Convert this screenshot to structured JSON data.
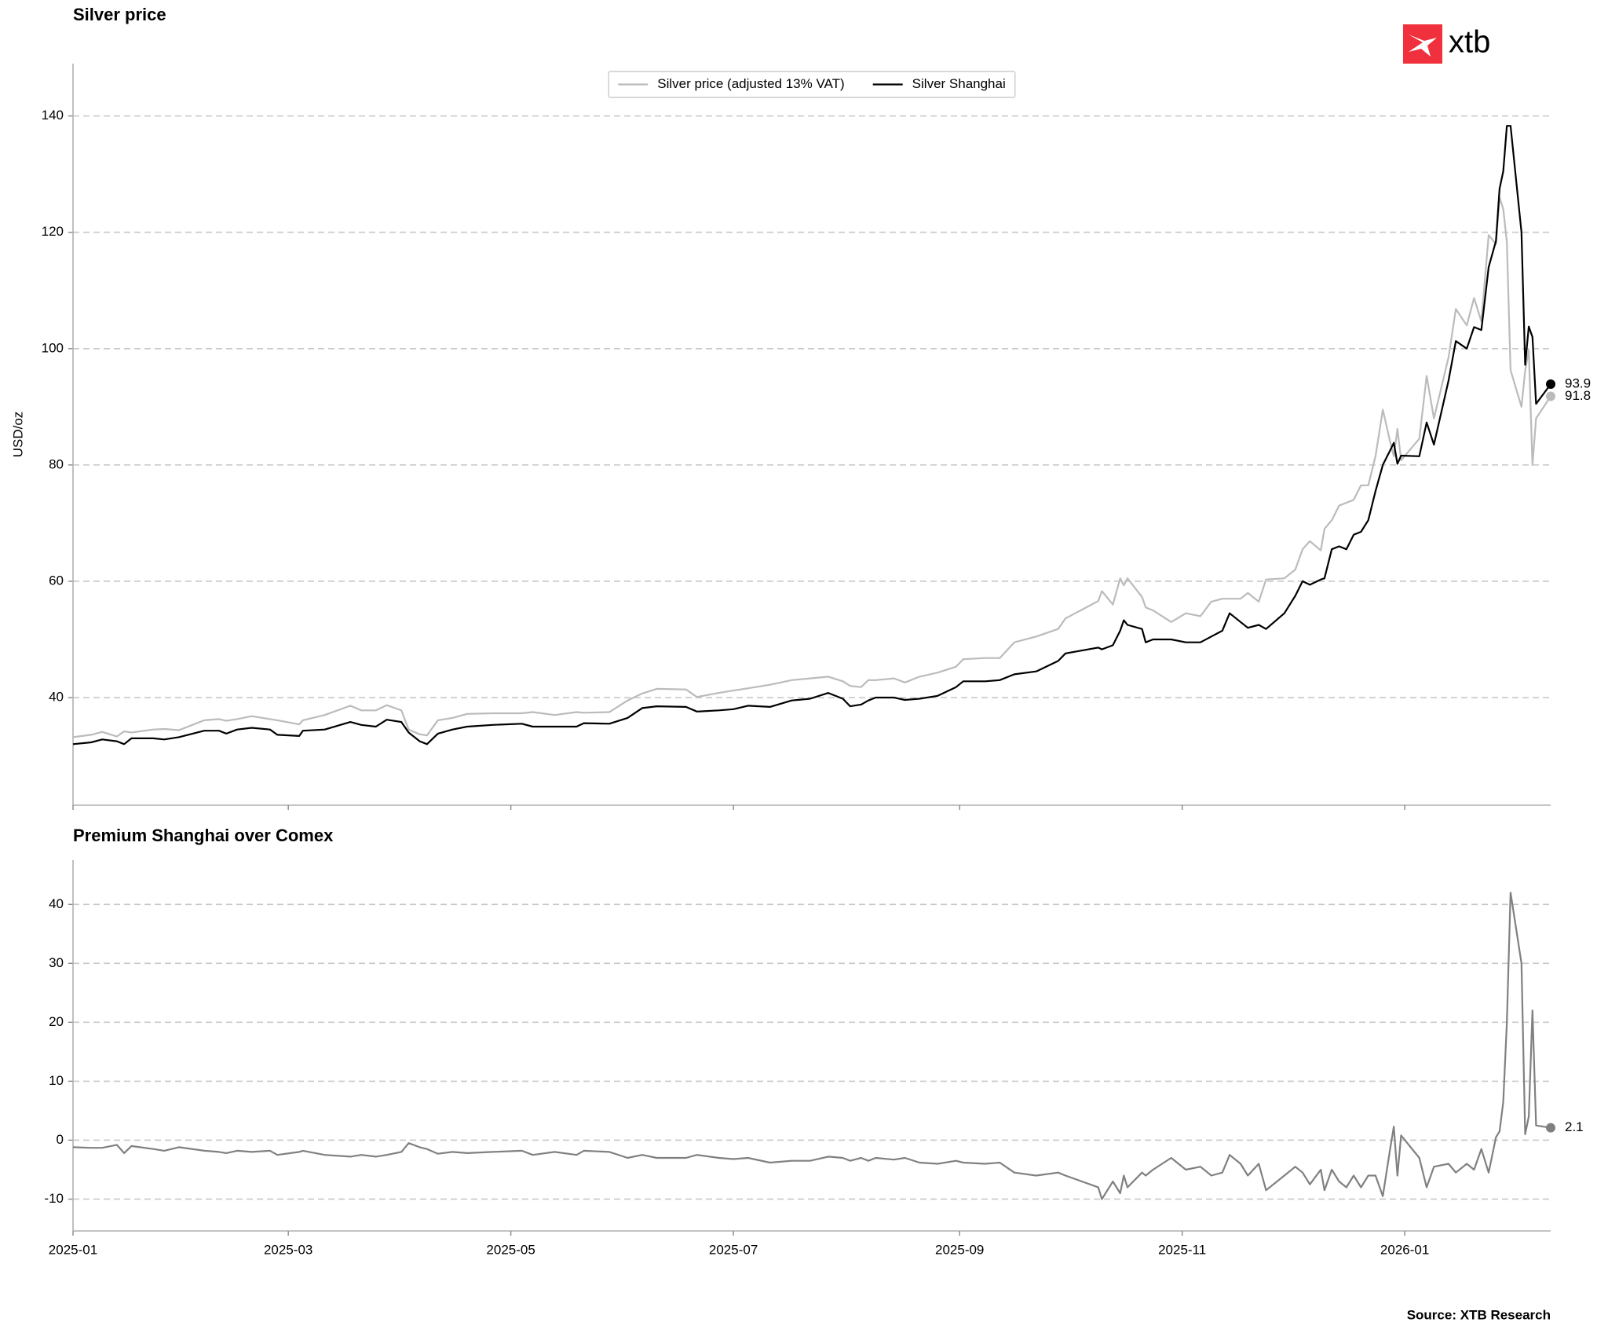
{
  "chart_data": [
    {
      "type": "line",
      "title": "Silver price",
      "ylabel": "USD/oz",
      "x": [
        0,
        5,
        8,
        12,
        14,
        16,
        22,
        25,
        29,
        36,
        40,
        42,
        45,
        49,
        54,
        56,
        62,
        63,
        69,
        76,
        79,
        83,
        86,
        90,
        92,
        95,
        97,
        100,
        104,
        108,
        115,
        123,
        126,
        132,
        138,
        140,
        147,
        152,
        156,
        160,
        168,
        171,
        177,
        181,
        185,
        191,
        197,
        202,
        207,
        211,
        213,
        216,
        218,
        220,
        225,
        228,
        232,
        237,
        242,
        244,
        250,
        254,
        258,
        264,
        270,
        272,
        281,
        282,
        285,
        287,
        288,
        289,
        293,
        294,
        296,
        301,
        305,
        309,
        312,
        315,
        317,
        320,
        322,
        325,
        327,
        332,
        335,
        337,
        339,
        342,
        343,
        345,
        347,
        349,
        351,
        353,
        355,
        357,
        359,
        361,
        362,
        363,
        364,
        369,
        371,
        373,
        377,
        379,
        382,
        384,
        386,
        388,
        390,
        391,
        392,
        393,
        394,
        397,
        398,
        399,
        400,
        401,
        405
      ],
      "series": [
        {
          "name": "Silver price (adjusted 13% VAT)",
          "color": "#bbbbbb",
          "values": [
            33.2,
            33.6,
            34.1,
            33.3,
            34.2,
            34.0,
            34.5,
            34.6,
            34.4,
            36.1,
            36.3,
            36.0,
            36.3,
            36.8,
            36.3,
            36.1,
            35.4,
            36.1,
            37.0,
            38.6,
            37.8,
            37.8,
            38.7,
            37.8,
            34.5,
            33.7,
            33.5,
            36.1,
            36.5,
            37.2,
            37.3,
            37.3,
            37.5,
            37.0,
            37.5,
            37.4,
            37.5,
            39.5,
            40.7,
            41.5,
            41.4,
            40.1,
            40.8,
            41.2,
            41.6,
            42.2,
            43.0,
            43.3,
            43.6,
            42.8,
            42.0,
            41.8,
            43.0,
            43.0,
            43.3,
            42.6,
            43.6,
            44.3,
            45.3,
            46.6,
            46.8,
            46.8,
            49.5,
            50.5,
            51.8,
            53.6,
            56.6,
            58.3,
            56.0,
            60.5,
            59.3,
            60.5,
            57.3,
            55.5,
            55.0,
            53.0,
            54.5,
            54.0,
            56.5,
            57.0,
            57.0,
            57.0,
            58.0,
            56.5,
            60.3,
            60.5,
            62.0,
            65.5,
            66.9,
            65.3,
            69.0,
            70.5,
            73.0,
            73.5,
            74.0,
            76.5,
            76.5,
            81.5,
            89.5,
            84.0,
            81.5,
            86.2,
            80.8,
            84.5,
            95.3,
            88.0,
            98.5,
            106.8,
            104.0,
            108.7,
            104.7,
            119.5,
            118.0,
            126.0,
            124.0,
            118.3,
            96.3,
            90.0,
            96.2,
            99.8,
            80.0,
            88.0,
            91.8
          ]
        },
        {
          "name": "Silver Shanghai",
          "color": "#000000",
          "values": [
            32.0,
            32.3,
            32.8,
            32.5,
            32.0,
            33.0,
            33.0,
            32.8,
            33.2,
            34.3,
            34.3,
            33.8,
            34.5,
            34.8,
            34.5,
            33.6,
            33.4,
            34.3,
            34.5,
            35.8,
            35.3,
            35.0,
            36.2,
            35.8,
            34.0,
            32.5,
            32.0,
            33.8,
            34.5,
            35.0,
            35.3,
            35.5,
            35.0,
            35.0,
            35.0,
            35.6,
            35.5,
            36.5,
            38.2,
            38.5,
            38.4,
            37.6,
            37.8,
            38.0,
            38.6,
            38.4,
            39.5,
            39.8,
            40.8,
            39.8,
            38.5,
            38.8,
            39.5,
            40.0,
            40.0,
            39.6,
            39.8,
            40.3,
            41.8,
            42.8,
            42.8,
            43.0,
            44.0,
            44.5,
            46.3,
            47.6,
            48.6,
            48.3,
            49.0,
            51.5,
            53.3,
            52.5,
            51.8,
            49.5,
            50.0,
            50.0,
            49.5,
            49.5,
            50.5,
            51.5,
            54.5,
            53.0,
            52.0,
            52.5,
            51.8,
            54.5,
            57.5,
            60.0,
            59.4,
            60.3,
            60.5,
            65.5,
            66.0,
            65.5,
            68.0,
            68.5,
            70.5,
            75.5,
            80.0,
            82.5,
            83.8,
            80.2,
            81.6,
            81.5,
            87.3,
            83.5,
            94.5,
            101.3,
            100.0,
            103.7,
            103.2,
            114,
            118.5,
            127.5,
            130.5,
            138.3,
            138.3,
            120,
            97.2,
            103.8,
            102.0,
            90.5,
            93.9
          ]
        }
      ],
      "xlim": [
        0,
        405
      ],
      "ylim": [
        21.5,
        149
      ],
      "yticks": [
        40,
        60,
        80,
        100,
        120,
        140
      ],
      "grid": true,
      "legend": "top"
    },
    {
      "type": "line",
      "title": "Premium Shanghai over Comex",
      "x": [
        0,
        5,
        8,
        12,
        14,
        16,
        22,
        25,
        29,
        36,
        40,
        42,
        45,
        49,
        54,
        56,
        62,
        63,
        69,
        76,
        79,
        83,
        86,
        90,
        92,
        95,
        97,
        100,
        104,
        108,
        115,
        123,
        126,
        132,
        138,
        140,
        147,
        152,
        156,
        160,
        168,
        171,
        177,
        181,
        185,
        191,
        197,
        202,
        207,
        211,
        213,
        216,
        218,
        220,
        225,
        228,
        232,
        237,
        242,
        244,
        250,
        254,
        258,
        264,
        270,
        272,
        281,
        282,
        285,
        287,
        288,
        289,
        293,
        294,
        296,
        301,
        305,
        309,
        312,
        315,
        317,
        320,
        322,
        325,
        327,
        332,
        335,
        337,
        339,
        342,
        343,
        345,
        347,
        349,
        351,
        353,
        355,
        357,
        359,
        361,
        362,
        363,
        364,
        369,
        371,
        373,
        377,
        379,
        382,
        384,
        386,
        388,
        390,
        391,
        392,
        393,
        394,
        397,
        398,
        399,
        400,
        401,
        405
      ],
      "color": "#808080",
      "values": [
        -1.2,
        -1.3,
        -1.3,
        -0.8,
        -2.2,
        -1.0,
        -1.5,
        -1.8,
        -1.2,
        -1.8,
        -2.0,
        -2.2,
        -1.8,
        -2.0,
        -1.8,
        -2.5,
        -2.0,
        -1.8,
        -2.5,
        -2.8,
        -2.5,
        -2.8,
        -2.5,
        -2.0,
        -0.5,
        -1.2,
        -1.5,
        -2.3,
        -2.0,
        -2.2,
        -2.0,
        -1.8,
        -2.5,
        -2.0,
        -2.5,
        -1.8,
        -2.0,
        -3.0,
        -2.5,
        -3.0,
        -3.0,
        -2.5,
        -3.0,
        -3.2,
        -3.0,
        -3.8,
        -3.5,
        -3.5,
        -2.8,
        -3.0,
        -3.5,
        -3.0,
        -3.5,
        -3.0,
        -3.3,
        -3.0,
        -3.8,
        -4.0,
        -3.5,
        -3.8,
        -4.0,
        -3.8,
        -5.5,
        -6.0,
        -5.5,
        -6.0,
        -8.0,
        -10.0,
        -7.0,
        -9.0,
        -6.0,
        -8.0,
        -5.5,
        -6.0,
        -5.0,
        -3.0,
        -5.0,
        -4.5,
        -6.0,
        -5.5,
        -2.5,
        -4.0,
        -6.0,
        -4.0,
        -8.5,
        -6.0,
        -4.5,
        -5.5,
        -7.5,
        -5.0,
        -8.5,
        -5.0,
        -7.0,
        -8.0,
        -6.0,
        -8.0,
        -6.0,
        -6.0,
        -9.5,
        -1.5,
        2.3,
        -6.0,
        0.8,
        -3.0,
        -8.0,
        -4.5,
        -4.0,
        -5.5,
        -4.0,
        -5.0,
        -1.5,
        -5.5,
        0.5,
        1.5,
        6.5,
        20,
        42.0,
        30.0,
        1.0,
        4.0,
        22.0,
        2.5,
        2.1
      ],
      "xlim": [
        0,
        405
      ],
      "ylim": [
        -15.4,
        47.5
      ],
      "yticks": [
        -10,
        0,
        10,
        20,
        30,
        40
      ],
      "grid": true,
      "xticks": [
        {
          "value": 0,
          "label": "2025-01"
        },
        {
          "value": 59,
          "label": "2025-03"
        },
        {
          "value": 120,
          "label": "2025-05"
        },
        {
          "value": 181,
          "label": "2025-07"
        },
        {
          "value": 243,
          "label": "2025-09"
        },
        {
          "value": 304,
          "label": "2025-11"
        },
        {
          "value": 365,
          "label": "2026-01"
        }
      ]
    }
  ],
  "logo": "xtb",
  "source": "Source: XTB Research"
}
